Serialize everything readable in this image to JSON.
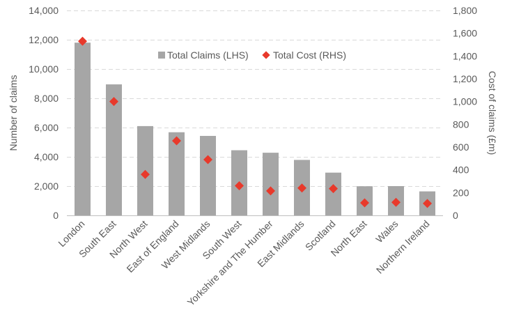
{
  "chart_data": {
    "type": "bar",
    "categories": [
      "London",
      "South East",
      "North West",
      "East of England",
      "West Midlands",
      "South West",
      "Yorkshire and The Humber",
      "East Midlands",
      "Scotland",
      "North East",
      "Wales",
      "Northern Ireland"
    ],
    "series": [
      {
        "name": "Total Claims (LHS)",
        "type": "bar",
        "axis": "left",
        "color": "#a6a6a6",
        "values": [
          11800,
          8950,
          6100,
          5680,
          5430,
          4450,
          4280,
          3790,
          2920,
          1990,
          2000,
          1640
        ]
      },
      {
        "name": "Total Cost (RHS)",
        "type": "scatter",
        "marker": "diamond",
        "axis": "right",
        "color": "#e8392b",
        "values": [
          1530,
          1000,
          360,
          655,
          490,
          260,
          215,
          240,
          235,
          110,
          115,
          105
        ]
      }
    ],
    "y_left": {
      "label": "Number of claims",
      "min": 0,
      "max": 14000,
      "step": 2000,
      "tick_labels": [
        "0",
        "2,000",
        "4,000",
        "6,000",
        "8,000",
        "10,000",
        "12,000",
        "14,000"
      ]
    },
    "y_right": {
      "label": "Cost of claims (£m)",
      "min": 0,
      "max": 1800,
      "step": 200,
      "tick_labels": [
        "0",
        "200",
        "400",
        "600",
        "800",
        "1,000",
        "1,200",
        "1,400",
        "1,600",
        "1,800"
      ]
    },
    "grid": true,
    "legend_position": "top-center"
  }
}
